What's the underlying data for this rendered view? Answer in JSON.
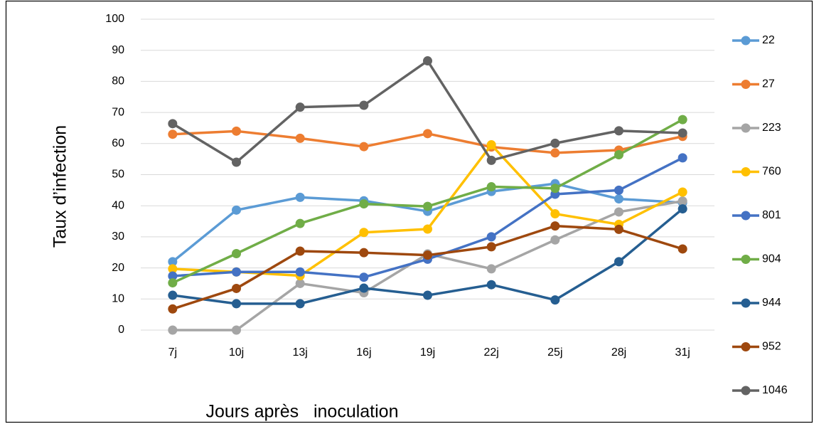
{
  "chart_data": {
    "type": "line",
    "y_label": "Taux d’infection",
    "x_label": "Jours après   inoculation",
    "categories": [
      "7j",
      "10j",
      "13j",
      "16j",
      "19j",
      "22j",
      "25j",
      "28j",
      "31j"
    ],
    "ylim": [
      0,
      100
    ],
    "yticks": [
      0,
      10,
      20,
      30,
      40,
      50,
      60,
      70,
      80,
      90,
      100
    ],
    "grid": true,
    "legend": "right",
    "series": [
      {
        "name": "22",
        "color": "#5B9BD5",
        "values": [
          22,
          38.6,
          42.7,
          41.6,
          38.2,
          44.6,
          47.1,
          42.2,
          41
        ]
      },
      {
        "name": "27",
        "color": "#ED7D31",
        "values": [
          63,
          64,
          61.7,
          59,
          63.2,
          58.9,
          57,
          57.9,
          62.3
        ]
      },
      {
        "name": "223",
        "color": "#A5A5A5",
        "values": [
          0,
          0,
          15,
          12,
          24.5,
          19.7,
          29,
          38,
          41.5
        ]
      },
      {
        "name": "760",
        "color": "#FFC000",
        "values": [
          19.7,
          18.7,
          17.5,
          31.4,
          32.5,
          59.6,
          37.4,
          34,
          44.4
        ]
      },
      {
        "name": "801",
        "color": "#4472C4",
        "values": [
          17.4,
          18.7,
          18.7,
          17,
          22.8,
          30,
          43.7,
          45,
          55.4
        ]
      },
      {
        "name": "904",
        "color": "#70AD47",
        "values": [
          15.2,
          24.6,
          34.3,
          40.6,
          39.8,
          46.1,
          45.6,
          56.4,
          67.7
        ]
      },
      {
        "name": "944",
        "color": "#255E91",
        "values": [
          11.2,
          8.5,
          8.5,
          13.5,
          11.2,
          14.6,
          9.7,
          22,
          39
        ]
      },
      {
        "name": "952",
        "color": "#9E480E",
        "values": [
          6.8,
          13.4,
          25.4,
          24.9,
          24.1,
          26.8,
          33.5,
          32.4,
          26.1
        ]
      },
      {
        "name": "1046",
        "color": "#636363",
        "values": [
          66.4,
          54,
          71.7,
          72.3,
          86.6,
          54.6,
          60.1,
          64.1,
          63.4
        ]
      }
    ]
  }
}
